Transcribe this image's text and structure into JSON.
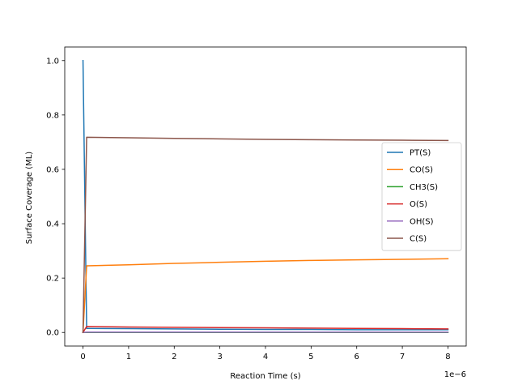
{
  "chart_data": {
    "type": "line",
    "title": "",
    "xlabel": "Reaction Time (s)",
    "ylabel": "Surface Coverage (ML)",
    "x_scale_note": "1e−6",
    "xlim": [
      -4e-07,
      8.4e-06
    ],
    "ylim": [
      -0.05,
      1.05
    ],
    "x_ticks": [
      0,
      1e-06,
      2e-06,
      3e-06,
      4e-06,
      5e-06,
      6e-06,
      7e-06,
      8e-06
    ],
    "x_tick_labels": [
      "0",
      "1",
      "2",
      "3",
      "4",
      "5",
      "6",
      "7",
      "8"
    ],
    "y_ticks": [
      0.0,
      0.2,
      0.4,
      0.6,
      0.8,
      1.0
    ],
    "y_tick_labels": [
      "0.0",
      "0.2",
      "0.4",
      "0.6",
      "0.8",
      "1.0"
    ],
    "grid": false,
    "legend_position": "center-right",
    "series": [
      {
        "name": "PT(S)",
        "color": "#1f77b4",
        "x": [
          0,
          8e-08,
          1e-06,
          2e-06,
          3e-06,
          4e-06,
          5e-06,
          6e-06,
          7e-06,
          8e-06
        ],
        "y": [
          1.0,
          0.015,
          0.014,
          0.013,
          0.012,
          0.011,
          0.011,
          0.01,
          0.01,
          0.01
        ]
      },
      {
        "name": "CO(S)",
        "color": "#ff7f0e",
        "x": [
          0,
          8e-08,
          1e-06,
          2e-06,
          3e-06,
          4e-06,
          5e-06,
          6e-06,
          7e-06,
          8e-06
        ],
        "y": [
          0.0,
          0.245,
          0.249,
          0.254,
          0.258,
          0.262,
          0.265,
          0.267,
          0.269,
          0.271
        ]
      },
      {
        "name": "CH3(S)",
        "color": "#2ca02c",
        "x": [
          0,
          8e-08,
          1e-06,
          2e-06,
          3e-06,
          4e-06,
          5e-06,
          6e-06,
          7e-06,
          8e-06
        ],
        "y": [
          0.0,
          0.0,
          0.0,
          0.0,
          0.0,
          0.0,
          0.0,
          0.0,
          0.0,
          0.0
        ]
      },
      {
        "name": "O(S)",
        "color": "#d62728",
        "x": [
          0,
          8e-08,
          1e-06,
          2e-06,
          3e-06,
          4e-06,
          5e-06,
          6e-06,
          7e-06,
          8e-06
        ],
        "y": [
          0.0,
          0.022,
          0.02,
          0.019,
          0.018,
          0.017,
          0.016,
          0.015,
          0.014,
          0.013
        ]
      },
      {
        "name": "OH(S)",
        "color": "#9467bd",
        "x": [
          0,
          8e-08,
          1e-06,
          2e-06,
          3e-06,
          4e-06,
          5e-06,
          6e-06,
          7e-06,
          8e-06
        ],
        "y": [
          0.0,
          0.001,
          0.001,
          0.001,
          0.001,
          0.001,
          0.001,
          0.001,
          0.001,
          0.001
        ]
      },
      {
        "name": "C(S)",
        "color": "#8c564b",
        "x": [
          0,
          8e-08,
          1e-06,
          2e-06,
          3e-06,
          4e-06,
          5e-06,
          6e-06,
          7e-06,
          8e-06
        ],
        "y": [
          0.0,
          0.718,
          0.716,
          0.714,
          0.712,
          0.71,
          0.709,
          0.708,
          0.707,
          0.706
        ]
      }
    ]
  }
}
